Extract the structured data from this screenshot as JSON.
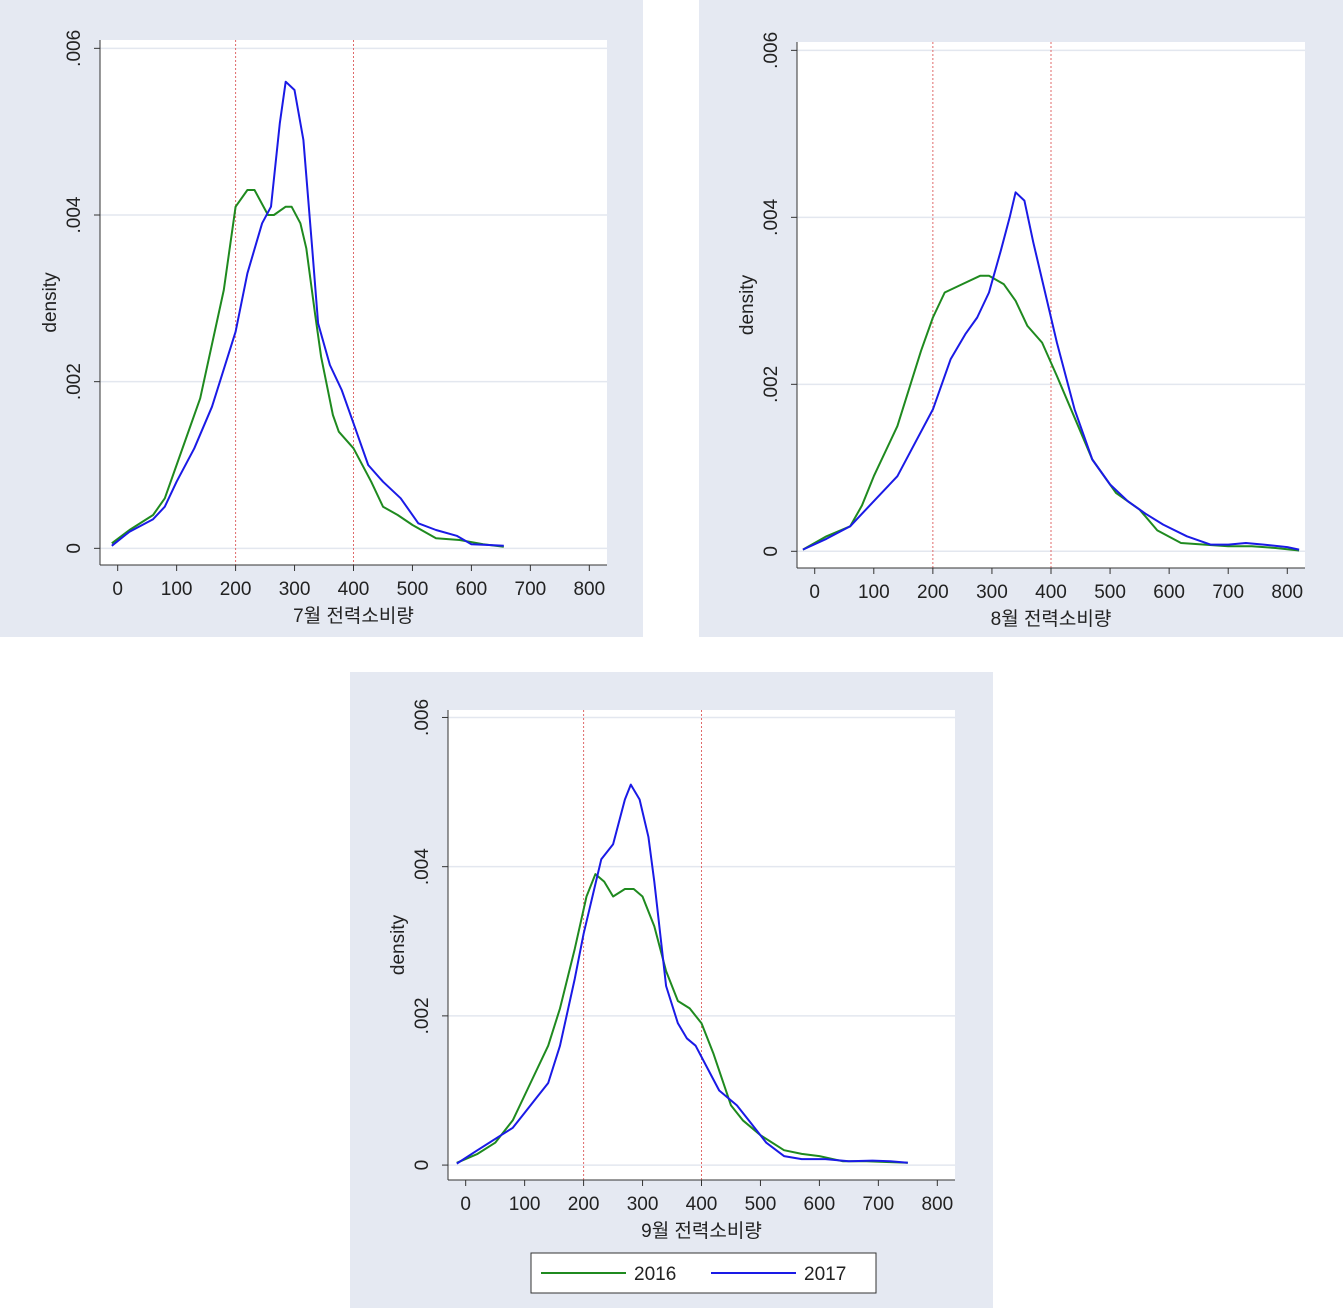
{
  "colors": {
    "panel_bg": "#e5e9f2",
    "plot_bg": "#ffffff",
    "grid": "#e3e7ef",
    "reference": "#e06a6a",
    "series_2016": "#1f8a1f",
    "series_2017": "#1a1ae6"
  },
  "legend": [
    {
      "label": "2016",
      "color": "#1f8a1f"
    },
    {
      "label": "2017",
      "color": "#1a1ae6"
    }
  ],
  "chart_data": [
    {
      "type": "line",
      "xlabel": "7월 전력소비량",
      "ylabel": "density",
      "xlim": [
        -30,
        830
      ],
      "ylim": [
        -0.0002,
        0.0061
      ],
      "x_ticks": [
        0,
        100,
        200,
        300,
        400,
        500,
        600,
        700,
        800
      ],
      "y_ticks": [
        0,
        0.002,
        0.004,
        0.006
      ],
      "y_tick_labels": [
        "0",
        ".002",
        ".004",
        ".006"
      ],
      "reference_lines_x": [
        200,
        400
      ],
      "series": [
        {
          "name": "2016",
          "points": [
            [
              -10,
              6e-05
            ],
            [
              20,
              0.00022
            ],
            [
              60,
              0.0004
            ],
            [
              80,
              0.0006
            ],
            [
              100,
              0.001
            ],
            [
              140,
              0.0018
            ],
            [
              180,
              0.0031
            ],
            [
              200,
              0.0041
            ],
            [
              220,
              0.0043
            ],
            [
              232,
              0.0043
            ],
            [
              255,
              0.004
            ],
            [
              265,
              0.004
            ],
            [
              285,
              0.0041
            ],
            [
              295,
              0.0041
            ],
            [
              310,
              0.0039
            ],
            [
              320,
              0.0036
            ],
            [
              335,
              0.0028
            ],
            [
              345,
              0.0023
            ],
            [
              365,
              0.0016
            ],
            [
              375,
              0.0014
            ],
            [
              400,
              0.0012
            ],
            [
              430,
              0.0008
            ],
            [
              450,
              0.0005
            ],
            [
              475,
              0.0004
            ],
            [
              500,
              0.00028
            ],
            [
              540,
              0.00012
            ],
            [
              580,
              0.0001
            ],
            [
              620,
              5e-05
            ],
            [
              655,
              2e-05
            ]
          ]
        },
        {
          "name": "2017",
          "points": [
            [
              -10,
              3e-05
            ],
            [
              20,
              0.0002
            ],
            [
              60,
              0.00035
            ],
            [
              80,
              0.0005
            ],
            [
              100,
              0.0008
            ],
            [
              130,
              0.0012
            ],
            [
              160,
              0.0017
            ],
            [
              200,
              0.0026
            ],
            [
              220,
              0.0033
            ],
            [
              245,
              0.0039
            ],
            [
              260,
              0.0041
            ],
            [
              275,
              0.0051
            ],
            [
              285,
              0.0056
            ],
            [
              300,
              0.0055
            ],
            [
              315,
              0.0049
            ],
            [
              330,
              0.0036
            ],
            [
              340,
              0.0027
            ],
            [
              360,
              0.0022
            ],
            [
              380,
              0.0019
            ],
            [
              400,
              0.0015
            ],
            [
              425,
              0.001
            ],
            [
              450,
              0.0008
            ],
            [
              480,
              0.0006
            ],
            [
              510,
              0.0003
            ],
            [
              540,
              0.00022
            ],
            [
              575,
              0.00015
            ],
            [
              600,
              5e-05
            ],
            [
              630,
              4e-05
            ],
            [
              655,
              3e-05
            ]
          ]
        }
      ]
    },
    {
      "type": "line",
      "xlabel": "8월 전력소비량",
      "ylabel": "density",
      "xlim": [
        -30,
        830
      ],
      "ylim": [
        -0.0002,
        0.0061
      ],
      "x_ticks": [
        0,
        100,
        200,
        300,
        400,
        500,
        600,
        700,
        800
      ],
      "y_ticks": [
        0,
        0.002,
        0.004,
        0.006
      ],
      "y_tick_labels": [
        "0",
        ".002",
        ".004",
        ".006"
      ],
      "reference_lines_x": [
        200,
        400
      ],
      "series": [
        {
          "name": "2016",
          "points": [
            [
              -20,
              2e-05
            ],
            [
              20,
              0.00018
            ],
            [
              60,
              0.0003
            ],
            [
              80,
              0.00055
            ],
            [
              100,
              0.0009
            ],
            [
              140,
              0.0015
            ],
            [
              180,
              0.0024
            ],
            [
              200,
              0.0028
            ],
            [
              220,
              0.0031
            ],
            [
              250,
              0.0032
            ],
            [
              280,
              0.0033
            ],
            [
              295,
              0.0033
            ],
            [
              320,
              0.0032
            ],
            [
              340,
              0.003
            ],
            [
              360,
              0.0027
            ],
            [
              385,
              0.0025
            ],
            [
              410,
              0.0021
            ],
            [
              440,
              0.0016
            ],
            [
              470,
              0.0011
            ],
            [
              510,
              0.0007
            ],
            [
              550,
              0.0005
            ],
            [
              580,
              0.00025
            ],
            [
              620,
              0.0001
            ],
            [
              660,
              8e-05
            ],
            [
              700,
              6e-05
            ],
            [
              740,
              6e-05
            ],
            [
              780,
              4e-05
            ],
            [
              820,
              1e-05
            ]
          ]
        },
        {
          "name": "2017",
          "points": [
            [
              -20,
              2e-05
            ],
            [
              20,
              0.00015
            ],
            [
              60,
              0.0003
            ],
            [
              80,
              0.00045
            ],
            [
              100,
              0.0006
            ],
            [
              140,
              0.0009
            ],
            [
              170,
              0.0013
            ],
            [
              200,
              0.0017
            ],
            [
              230,
              0.0023
            ],
            [
              255,
              0.0026
            ],
            [
              275,
              0.0028
            ],
            [
              295,
              0.0031
            ],
            [
              315,
              0.0036
            ],
            [
              330,
              0.004
            ],
            [
              340,
              0.0043
            ],
            [
              355,
              0.0042
            ],
            [
              370,
              0.0037
            ],
            [
              390,
              0.0031
            ],
            [
              410,
              0.0025
            ],
            [
              440,
              0.0017
            ],
            [
              470,
              0.0011
            ],
            [
              500,
              0.0008
            ],
            [
              530,
              0.0006
            ],
            [
              560,
              0.00045
            ],
            [
              590,
              0.00032
            ],
            [
              630,
              0.00018
            ],
            [
              670,
              8e-05
            ],
            [
              700,
              8e-05
            ],
            [
              730,
              0.0001
            ],
            [
              760,
              8e-05
            ],
            [
              800,
              5e-05
            ],
            [
              820,
              2e-05
            ]
          ]
        }
      ]
    },
    {
      "type": "line",
      "xlabel": "9월 전력소비량",
      "ylabel": "density",
      "xlim": [
        -30,
        830
      ],
      "ylim": [
        -0.0002,
        0.0061
      ],
      "x_ticks": [
        0,
        100,
        200,
        300,
        400,
        500,
        600,
        700,
        800
      ],
      "y_ticks": [
        0,
        0.002,
        0.004,
        0.006
      ],
      "y_tick_labels": [
        "0",
        ".002",
        ".004",
        ".006"
      ],
      "reference_lines_x": [
        200,
        400
      ],
      "series": [
        {
          "name": "2016",
          "points": [
            [
              -15,
              3e-05
            ],
            [
              20,
              0.00015
            ],
            [
              50,
              0.0003
            ],
            [
              80,
              0.0006
            ],
            [
              110,
              0.0011
            ],
            [
              140,
              0.0016
            ],
            [
              160,
              0.0021
            ],
            [
              185,
              0.0029
            ],
            [
              205,
              0.0036
            ],
            [
              220,
              0.0039
            ],
            [
              235,
              0.0038
            ],
            [
              250,
              0.0036
            ],
            [
              270,
              0.0037
            ],
            [
              285,
              0.0037
            ],
            [
              300,
              0.0036
            ],
            [
              320,
              0.0032
            ],
            [
              340,
              0.0026
            ],
            [
              360,
              0.0022
            ],
            [
              380,
              0.0021
            ],
            [
              400,
              0.0019
            ],
            [
              420,
              0.0015
            ],
            [
              450,
              0.0008
            ],
            [
              470,
              0.0006
            ],
            [
              500,
              0.0004
            ],
            [
              540,
              0.0002
            ],
            [
              570,
              0.00015
            ],
            [
              600,
              0.00012
            ],
            [
              640,
              5e-05
            ],
            [
              680,
              5e-05
            ],
            [
              720,
              4e-05
            ],
            [
              750,
              3e-05
            ]
          ]
        },
        {
          "name": "2017",
          "points": [
            [
              -15,
              2e-05
            ],
            [
              20,
              0.0002
            ],
            [
              60,
              0.0004
            ],
            [
              80,
              0.0005
            ],
            [
              100,
              0.0007
            ],
            [
              120,
              0.0009
            ],
            [
              140,
              0.0011
            ],
            [
              160,
              0.0016
            ],
            [
              185,
              0.0025
            ],
            [
              200,
              0.0031
            ],
            [
              230,
              0.0041
            ],
            [
              250,
              0.0043
            ],
            [
              270,
              0.0049
            ],
            [
              280,
              0.0051
            ],
            [
              295,
              0.0049
            ],
            [
              310,
              0.0044
            ],
            [
              320,
              0.0038
            ],
            [
              340,
              0.0024
            ],
            [
              360,
              0.0019
            ],
            [
              375,
              0.0017
            ],
            [
              390,
              0.0016
            ],
            [
              410,
              0.0013
            ],
            [
              430,
              0.001
            ],
            [
              460,
              0.0008
            ],
            [
              480,
              0.0006
            ],
            [
              510,
              0.0003
            ],
            [
              540,
              0.00012
            ],
            [
              570,
              8e-05
            ],
            [
              610,
              8e-05
            ],
            [
              650,
              5e-05
            ],
            [
              690,
              6e-05
            ],
            [
              720,
              5e-05
            ],
            [
              750,
              3e-05
            ]
          ]
        }
      ]
    }
  ]
}
